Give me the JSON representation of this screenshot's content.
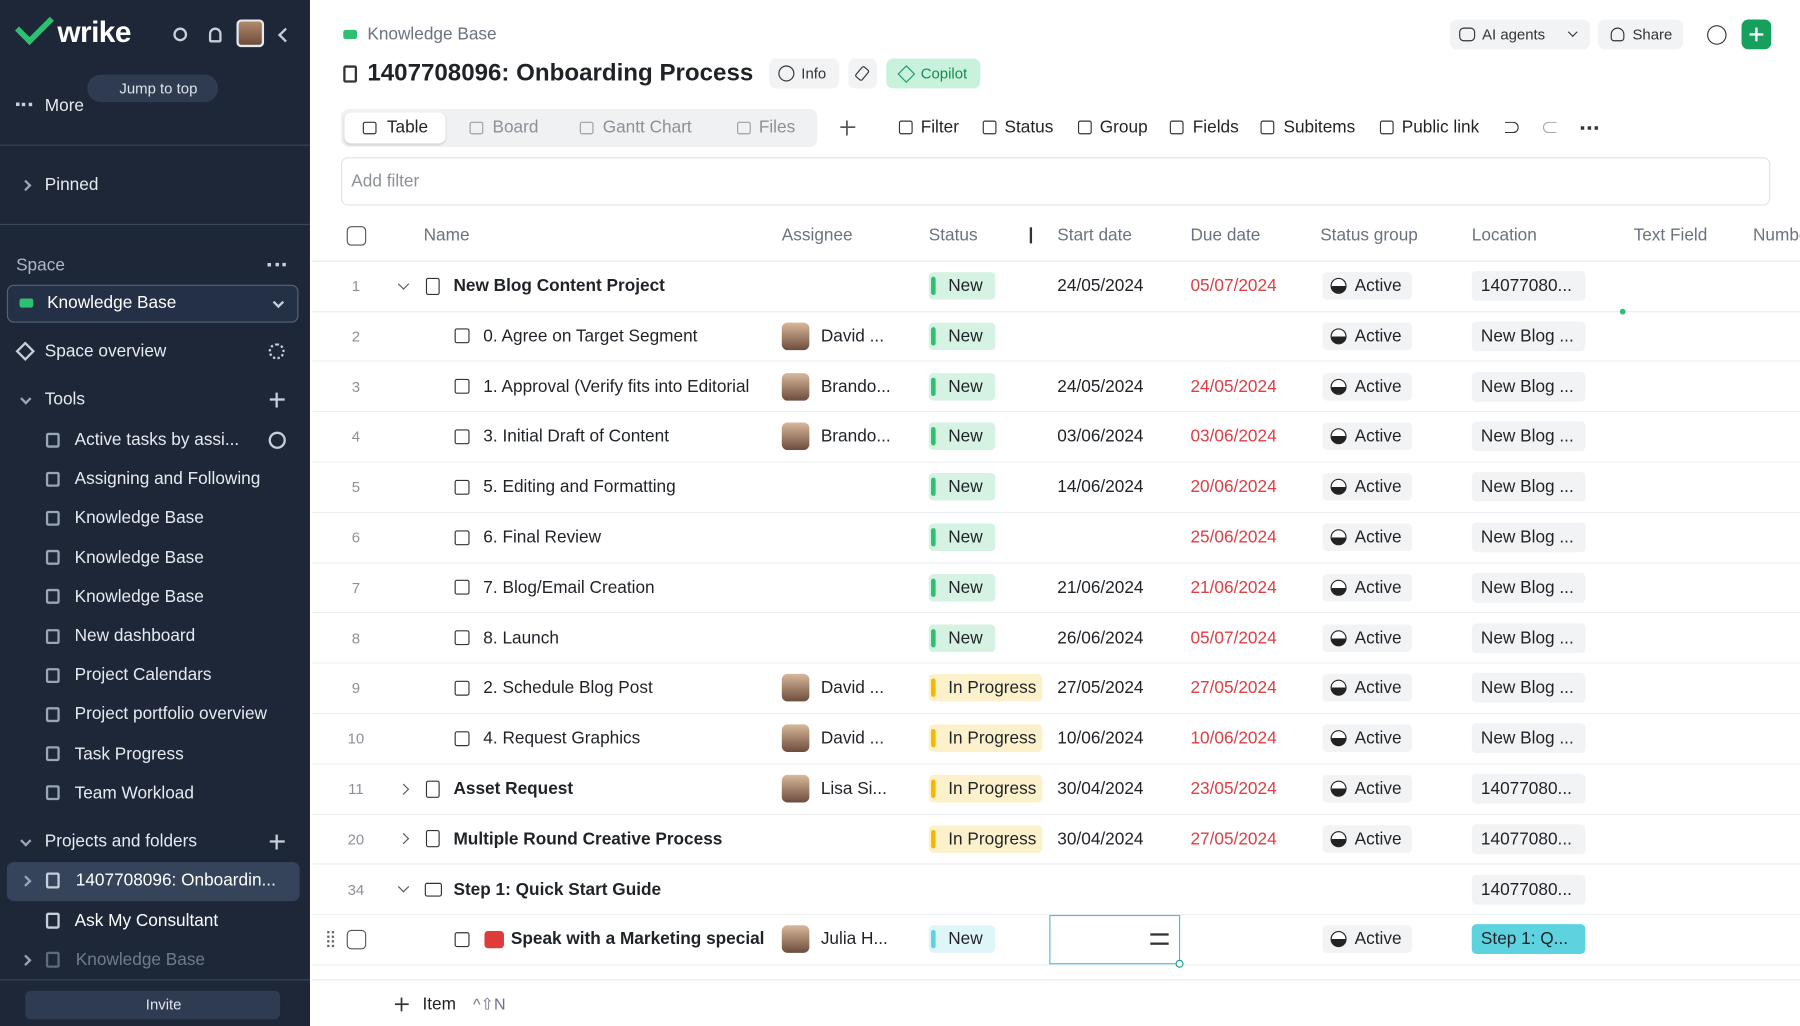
{
  "sidebar": {
    "logo": "wrike",
    "jump_to_top": "Jump to top",
    "more": "More",
    "pinned": "Pinned",
    "space_label": "Space",
    "space_name": "Knowledge Base",
    "space_overview": "Space overview",
    "tools_label": "Tools",
    "tools": [
      "Active tasks by assi...",
      "Assigning and Following",
      "Knowledge Base",
      "Knowledge Base",
      "Knowledge Base",
      "New dashboard",
      "Project Calendars",
      "Project portfolio overview",
      "Task Progress",
      "Team Workload"
    ],
    "projects_label": "Projects and folders",
    "projects": [
      "1407708096: Onboardin...",
      "Ask My Consultant",
      "Knowledge Base"
    ],
    "invite": "Invite"
  },
  "header": {
    "breadcrumb": "Knowledge Base",
    "title": "1407708096: Onboarding Process",
    "info": "Info",
    "copilot": "Copilot",
    "ai_agents": "AI agents",
    "share": "Share"
  },
  "views": [
    "Table",
    "Board",
    "Gantt Chart",
    "Files"
  ],
  "toolbar": [
    "Filter",
    "Status",
    "Group",
    "Fields",
    "Subitems",
    "Public link"
  ],
  "filter_placeholder": "Add filter",
  "table": {
    "columns": [
      "Name",
      "Assignee",
      "Status",
      "Start date",
      "Due date",
      "Status group",
      "Location",
      "Text Field",
      "Numbe"
    ],
    "rows": [
      {
        "num": 1,
        "kind": "project",
        "expanded": true,
        "name": "New Blog Content Project",
        "assignee": null,
        "status": "New",
        "status_color": "#2fbf71",
        "start": "24/05/2024",
        "due": "05/07/2024",
        "group": "Active",
        "location": "14077080..."
      },
      {
        "num": 2,
        "kind": "task",
        "name": "0. Agree on Target Segment",
        "assignee": "David ...",
        "status": "New",
        "status_color": "#2fbf71",
        "start": null,
        "due": null,
        "group": "Active",
        "location": "New Blog ..."
      },
      {
        "num": 3,
        "kind": "task",
        "name": "1. Approval (Verify fits into Editorial",
        "assignee": "Brando...",
        "status": "New",
        "status_color": "#2fbf71",
        "start": "24/05/2024",
        "due": "24/05/2024",
        "group": "Active",
        "location": "New Blog ..."
      },
      {
        "num": 4,
        "kind": "task",
        "name": "3. Initial Draft of Content",
        "assignee": "Brando...",
        "status": "New",
        "status_color": "#2fbf71",
        "start": "03/06/2024",
        "due": "03/06/2024",
        "group": "Active",
        "location": "New Blog ..."
      },
      {
        "num": 5,
        "kind": "task",
        "name": "5. Editing and Formatting",
        "assignee": null,
        "status": "New",
        "status_color": "#2fbf71",
        "start": "14/06/2024",
        "due": "20/06/2024",
        "group": "Active",
        "location": "New Blog ..."
      },
      {
        "num": 6,
        "kind": "task",
        "name": "6. Final Review",
        "assignee": null,
        "status": "New",
        "status_color": "#2fbf71",
        "start": null,
        "due": "25/06/2024",
        "group": "Active",
        "location": "New Blog ..."
      },
      {
        "num": 7,
        "kind": "task",
        "name": "7. Blog/Email Creation",
        "assignee": null,
        "status": "New",
        "status_color": "#2fbf71",
        "start": "21/06/2024",
        "due": "21/06/2024",
        "group": "Active",
        "location": "New Blog ..."
      },
      {
        "num": 8,
        "kind": "task",
        "name": "8. Launch",
        "assignee": null,
        "status": "New",
        "status_color": "#2fbf71",
        "start": "26/06/2024",
        "due": "05/07/2024",
        "group": "Active",
        "location": "New Blog ..."
      },
      {
        "num": 9,
        "kind": "task",
        "name": "2. Schedule Blog Post",
        "assignee": "David ...",
        "status": "In Progress",
        "status_color": "#f5b800",
        "start": "27/05/2024",
        "due": "27/05/2024",
        "group": "Active",
        "location": "New Blog ..."
      },
      {
        "num": 10,
        "kind": "task",
        "name": "4. Request Graphics",
        "assignee": "David ...",
        "status": "In Progress",
        "status_color": "#f5b800",
        "start": "10/06/2024",
        "due": "10/06/2024",
        "group": "Active",
        "location": "New Blog ..."
      },
      {
        "num": 11,
        "kind": "project",
        "expanded": false,
        "name": "Asset Request",
        "assignee": "Lisa Si...",
        "status": "In Progress",
        "status_color": "#f5b800",
        "start": "30/04/2024",
        "due": "23/05/2024",
        "group": "Active",
        "location": "14077080..."
      },
      {
        "num": 20,
        "kind": "project",
        "expanded": false,
        "name": "Multiple Round Creative Process",
        "assignee": null,
        "status": "In Progress",
        "status_color": "#f5b800",
        "start": "30/04/2024",
        "due": "27/05/2024",
        "group": "Active",
        "location": "14077080..."
      },
      {
        "num": 34,
        "kind": "folder",
        "expanded": true,
        "name": "Step 1: Quick Start Guide",
        "assignee": null,
        "status": null,
        "start": null,
        "due": null,
        "group": null,
        "location": "14077080..."
      },
      {
        "num": null,
        "kind": "request",
        "name": "Speak with a Marketing special",
        "assignee": "Julia H...",
        "status": "New",
        "status_color": "#5ed3e0",
        "start": null,
        "due": null,
        "group": "Active",
        "location": "Step 1: Q...",
        "location_color": "#5ed3e0"
      }
    ]
  },
  "footer": {
    "add_item": "Item",
    "shortcut": "^⇧N"
  }
}
